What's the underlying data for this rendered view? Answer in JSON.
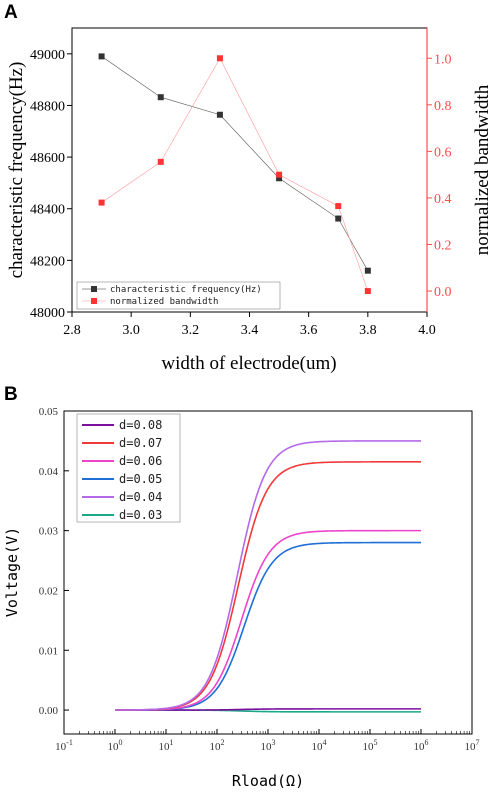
{
  "figure": {
    "panel_a_letter": "A",
    "panel_b_letter": "B"
  },
  "chart_data": [
    {
      "type": "scatter",
      "panel": "A",
      "xlabel": "width of electrode(um)",
      "ylabel_left": "characteristic frequency(Hz)",
      "ylabel_right": "normalized bandwidth",
      "xlim": [
        2.8,
        4.0
      ],
      "ylim_left": [
        48000,
        49100
      ],
      "ylim_right": [
        -0.09,
        1.13
      ],
      "x_ticks": [
        "2.8",
        "3.0",
        "3.2",
        "3.4",
        "3.6",
        "3.8",
        "4.0"
      ],
      "y_left_ticks": [
        "48000",
        "48200",
        "48400",
        "48600",
        "48800",
        "49000"
      ],
      "y_right_ticks": [
        "0.0",
        "0.2",
        "0.4",
        "0.6",
        "0.8",
        "1.0"
      ],
      "x": [
        2.9,
        3.1,
        3.3,
        3.5,
        3.7,
        3.8
      ],
      "series": [
        {
          "name": "characteristic frequency(Hz)",
          "axis": "left",
          "color": "#333333",
          "values": [
            48990,
            48832,
            48764,
            48518,
            48362,
            48160
          ]
        },
        {
          "name": "normalized bandwidth",
          "axis": "right",
          "color": "#ff3333",
          "values": [
            0.38,
            0.555,
            1.0,
            0.5,
            0.365,
            0.0
          ]
        }
      ],
      "legend_position": "bottom-left",
      "right_axis_color": "#ff4d4d"
    },
    {
      "type": "line",
      "panel": "B",
      "xlabel": "Rload(Ω)",
      "ylabel": "Voltage(V)",
      "x_scale": "log",
      "xlim": [
        0.1,
        10000000
      ],
      "ylim": [
        -0.004,
        0.05
      ],
      "x_ticks": [
        {
          "base": "10",
          "exp": "-1"
        },
        {
          "base": "10",
          "exp": "0"
        },
        {
          "base": "10",
          "exp": "1"
        },
        {
          "base": "10",
          "exp": "2"
        },
        {
          "base": "10",
          "exp": "3"
        },
        {
          "base": "10",
          "exp": "4"
        },
        {
          "base": "10",
          "exp": "5"
        },
        {
          "base": "10",
          "exp": "6"
        },
        {
          "base": "10",
          "exp": "7"
        }
      ],
      "y_ticks": [
        "0.00",
        "0.01",
        "0.02",
        "0.03",
        "0.04",
        "0.05"
      ],
      "x_range_plotted": [
        1,
        1000000
      ],
      "series": [
        {
          "name": "d=0.08",
          "color": "#7b0f9e",
          "plateau": 0.0002,
          "midpoint": 300
        },
        {
          "name": "d=0.07",
          "color": "#f03a3a",
          "plateau": 0.0415,
          "midpoint": 260
        },
        {
          "name": "d=0.06",
          "color": "#ee44cc",
          "plateau": 0.03,
          "midpoint": 300
        },
        {
          "name": "d=0.05",
          "color": "#1f6fd6",
          "plateau": 0.028,
          "midpoint": 340
        },
        {
          "name": "d=0.04",
          "color": "#b46ae8",
          "plateau": 0.045,
          "midpoint": 250
        },
        {
          "name": "d=0.03",
          "color": "#1aa88a",
          "plateau": -0.0003,
          "midpoint": 300
        }
      ],
      "legend_position": "top-left"
    }
  ]
}
